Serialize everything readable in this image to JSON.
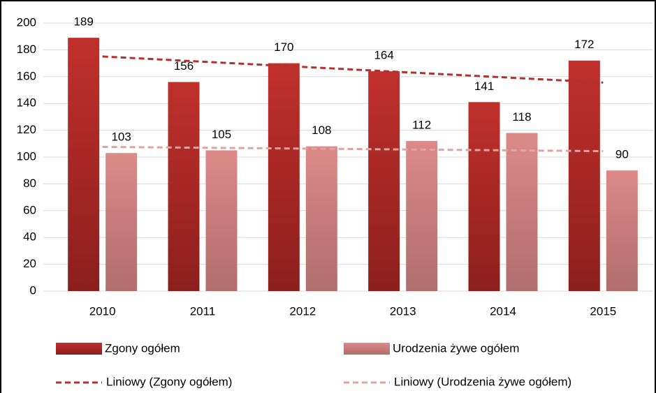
{
  "chart_data": {
    "type": "bar",
    "categories": [
      "2010",
      "2011",
      "2012",
      "2013",
      "2014",
      "2015"
    ],
    "series": [
      {
        "name": "Zgony ogółem",
        "color": "#b3302c",
        "values": [
          189,
          156,
          170,
          164,
          141,
          172
        ]
      },
      {
        "name": "Urodzenia żywe ogółem",
        "color": "#d88583",
        "values": [
          103,
          105,
          108,
          112,
          118,
          90
        ]
      }
    ],
    "trendlines": [
      {
        "name": "Liniowy (Zgony ogółem)",
        "series": 0,
        "color": "#b3302c"
      },
      {
        "name": "Liniowy (Urodzenia żywe ogółem)",
        "series": 1,
        "color": "#e0a3a1"
      }
    ],
    "ylim": [
      0,
      200
    ],
    "yticks": [
      0,
      20,
      40,
      60,
      80,
      100,
      120,
      140,
      160,
      180,
      200
    ],
    "grid": true
  }
}
